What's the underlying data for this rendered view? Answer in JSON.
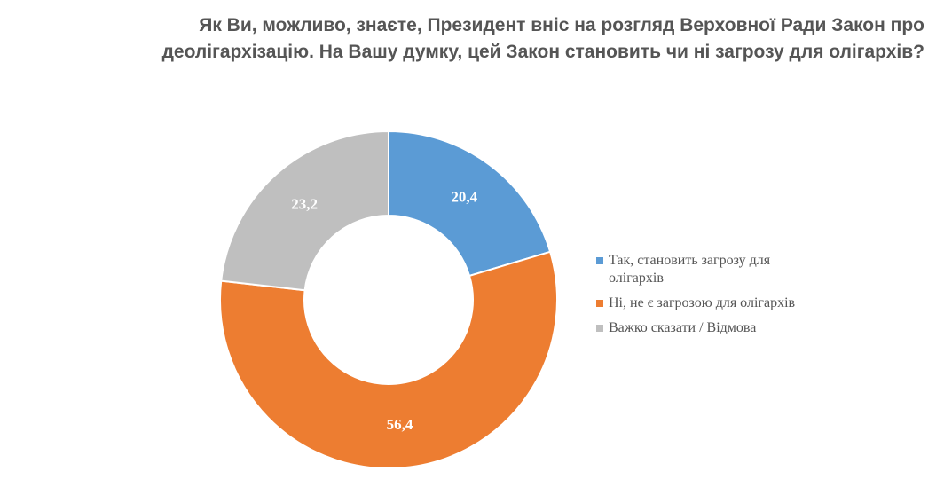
{
  "chart_data": {
    "type": "donut",
    "title": [
      "Як Ви, можливо, знаєте, Президент вніс на розгляд Верховної Ради Закон про",
      "деолігархізацію. На Вашу думку, цей Закон становить чи ні загрозу для олігархів?"
    ],
    "categories": [
      "Так, становить загрозу для олігархів",
      "Ні, не є загрозою для олігархів",
      "Важко сказати / Відмова"
    ],
    "values": [
      20.4,
      56.4,
      23.2
    ],
    "value_labels": [
      "20,4",
      "56,4",
      "23,2"
    ],
    "colors": [
      "#5b9bd5",
      "#ed7d31",
      "#bfbfbf"
    ],
    "legend": "right"
  }
}
